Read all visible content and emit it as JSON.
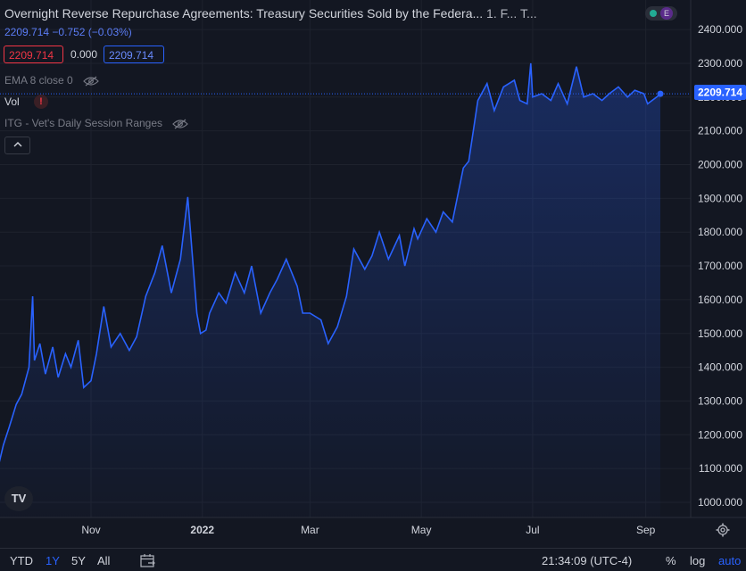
{
  "header": {
    "title": "Overnight Reverse Repurchase Agreements: Treasury Securities Sold by the Federa...",
    "interval": "1.",
    "source": "F...",
    "extra": "T...",
    "change_line": "2209.714 −0.752 (−0.03%)",
    "sell_value": "2209.714",
    "spread_value": "0.000",
    "buy_value": "2209.714"
  },
  "indicators": {
    "ema_label": "EMA 8 close 0",
    "vol_label": "Vol",
    "vol_warning": "!",
    "itg_label": "ITG - Vet's Daily Session Ranges"
  },
  "top_badge": {
    "letter": "E"
  },
  "logo_text": "TV",
  "bottom_bar": {
    "periods": [
      "YTD",
      "1Y",
      "5Y",
      "All"
    ],
    "active_period": "1Y",
    "time": "21:34:09 (UTC-4)",
    "percent": "%",
    "log": "log",
    "auto": "auto"
  },
  "icons": [
    "eye-off-icon",
    "calendar-range-icon",
    "gear-icon",
    "chevron-up-icon"
  ],
  "colors": {
    "background": "#131722",
    "line": "#2962ff",
    "area_fill": "#1f2b5e",
    "grid": "#1e222d",
    "last_price_label": "#2962ff",
    "negative": "#f23645"
  },
  "chart_data": {
    "type": "area",
    "title": "Overnight Reverse Repurchase Agreements: Treasury Securities Sold by the Federa...",
    "last_value": "2209.714",
    "ylim": [
      950,
      2450
    ],
    "yticks": [
      "2400.000",
      "2300.000",
      "2200.000",
      "2100.000",
      "2000.000",
      "1900.000",
      "1800.000",
      "1700.000",
      "1600.000",
      "1500.000",
      "1400.000",
      "1300.000",
      "1200.000",
      "1100.000",
      "1000.000"
    ],
    "xticks": [
      "Nov",
      "2022",
      "Mar",
      "May",
      "Jul",
      "Sep"
    ],
    "xtick_dates": [
      "2021-11-01",
      "2022-01-01",
      "2022-03-01",
      "2022-05-01",
      "2022-07-01",
      "2022-09-01"
    ],
    "grid": true,
    "x": [
      "2021-09-10",
      "2021-09-14",
      "2021-09-17",
      "2021-09-21",
      "2021-09-24",
      "2021-09-28",
      "2021-09-30",
      "2021-10-01",
      "2021-10-04",
      "2021-10-07",
      "2021-10-11",
      "2021-10-14",
      "2021-10-18",
      "2021-10-21",
      "2021-10-25",
      "2021-10-28",
      "2021-11-01",
      "2021-11-04",
      "2021-11-08",
      "2021-11-12",
      "2021-11-17",
      "2021-11-22",
      "2021-11-26",
      "2021-12-01",
      "2021-12-06",
      "2021-12-10",
      "2021-12-15",
      "2021-12-20",
      "2021-12-24",
      "2021-12-29",
      "2021-12-31",
      "2022-01-03",
      "2022-01-05",
      "2022-01-10",
      "2022-01-14",
      "2022-01-19",
      "2022-01-24",
      "2022-01-28",
      "2022-02-02",
      "2022-02-07",
      "2022-02-11",
      "2022-02-16",
      "2022-02-22",
      "2022-02-25",
      "2022-03-01",
      "2022-03-07",
      "2022-03-11",
      "2022-03-16",
      "2022-03-21",
      "2022-03-25",
      "2022-03-31",
      "2022-04-04",
      "2022-04-08",
      "2022-04-13",
      "2022-04-19",
      "2022-04-22",
      "2022-04-27",
      "2022-04-29",
      "2022-05-04",
      "2022-05-09",
      "2022-05-13",
      "2022-05-18",
      "2022-05-24",
      "2022-05-27",
      "2022-06-01",
      "2022-06-06",
      "2022-06-10",
      "2022-06-15",
      "2022-06-21",
      "2022-06-24",
      "2022-06-28",
      "2022-06-30",
      "2022-07-01",
      "2022-07-06",
      "2022-07-11",
      "2022-07-15",
      "2022-07-20",
      "2022-07-25",
      "2022-07-29",
      "2022-08-03",
      "2022-08-08",
      "2022-08-12",
      "2022-08-17",
      "2022-08-22",
      "2022-08-26",
      "2022-08-31",
      "2022-09-02",
      "2022-09-07",
      "2022-09-09"
    ],
    "series": [
      {
        "values": [
          1080,
          1170,
          1220,
          1290,
          1320,
          1400,
          1610,
          1420,
          1470,
          1380,
          1460,
          1370,
          1440,
          1400,
          1480,
          1340,
          1360,
          1440,
          1580,
          1460,
          1500,
          1450,
          1490,
          1610,
          1680,
          1760,
          1620,
          1720,
          1904,
          1560,
          1500,
          1510,
          1560,
          1620,
          1590,
          1680,
          1620,
          1700,
          1560,
          1620,
          1660,
          1720,
          1640,
          1560,
          1560,
          1540,
          1470,
          1520,
          1610,
          1750,
          1690,
          1730,
          1800,
          1720,
          1790,
          1700,
          1810,
          1780,
          1840,
          1800,
          1860,
          1830,
          1990,
          2010,
          2190,
          2240,
          2160,
          2230,
          2250,
          2190,
          2180,
          2300,
          2200,
          2210,
          2190,
          2240,
          2180,
          2290,
          2200,
          2210,
          2190,
          2210,
          2230,
          2200,
          2220,
          2210,
          2180,
          2200,
          2209.714
        ]
      }
    ]
  }
}
